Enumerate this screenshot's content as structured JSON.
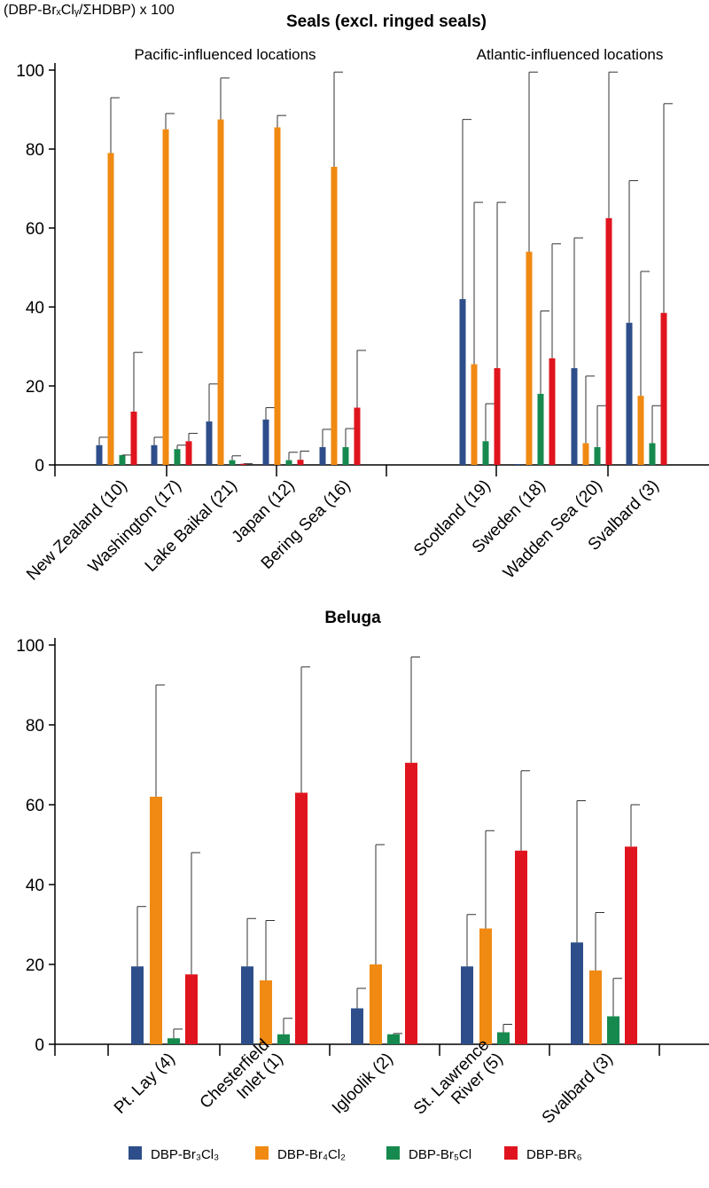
{
  "colors": {
    "DBP-Br3Cl3": "#2d4e8a",
    "DBP-Br4Cl2": "#f08a12",
    "DBP-Br5Cl": "#168a4e",
    "DBP-BR6": "#e0141e",
    "error_bar": "#333333",
    "axis": "#000000"
  },
  "ylabel": "(DBP-BrₓClᵧ/ΣHDBP) x 100",
  "legend": [
    "DBP-Br₃Cl₃",
    "DBP-Br₄Cl₂",
    "DBP-Br₅Cl",
    "DBP-BR₆"
  ],
  "chart_data": [
    {
      "type": "bar",
      "title": "Seals (excl. ringed seals)",
      "group_labels": [
        "Pacific-influenced locations",
        "Atlantic-influenced locations"
      ],
      "ylim": [
        0,
        100
      ],
      "yticks": [
        0,
        20,
        40,
        60,
        80,
        100
      ],
      "categories": [
        "New Zealand (10)",
        "Washington (17)",
        "Lake Baikal (21)",
        "Japan (12)",
        "Bering Sea (16)",
        "Scotland (19)",
        "Sweden (18)",
        "Wadden Sea (20)",
        "Svalbard (3)"
      ],
      "series": [
        {
          "name": "DBP-Br₃Cl₃",
          "values": [
            5,
            5,
            11,
            11.5,
            4.5,
            42,
            0,
            24.5,
            36
          ],
          "errors": [
            7,
            7,
            20.5,
            14.5,
            9,
            87.5,
            null,
            57.5,
            72
          ]
        },
        {
          "name": "DBP-Br₄Cl₂",
          "values": [
            79,
            85,
            87.5,
            85.5,
            75.5,
            25.5,
            54,
            5.5,
            17.5
          ],
          "errors": [
            93,
            89,
            98,
            88.5,
            99.5,
            66.5,
            99.5,
            22.5,
            49
          ]
        },
        {
          "name": "DBP-Br₅Cl",
          "values": [
            2.5,
            4,
            1.2,
            1.2,
            4.5,
            6,
            18,
            4.5,
            5.5
          ],
          "errors": [
            2.5,
            5,
            2.3,
            3.2,
            9.2,
            15.5,
            39,
            15,
            15
          ]
        },
        {
          "name": "DBP-BR₆",
          "values": [
            13.5,
            6,
            0.3,
            1.3,
            14.5,
            24.5,
            27,
            62.5,
            38.5
          ],
          "errors": [
            28.5,
            8,
            0.3,
            3.5,
            29,
            66.5,
            56,
            99.5,
            91.5
          ]
        }
      ]
    },
    {
      "type": "bar",
      "title": "Beluga",
      "ylim": [
        0,
        100
      ],
      "yticks": [
        0,
        20,
        40,
        60,
        80,
        100
      ],
      "categories": [
        "Pt. Lay (4)",
        "Chesterfield Inlet (1)",
        "Igloolik (2)",
        "St. Lawrence River (5)",
        "Svalbard (3)"
      ],
      "series": [
        {
          "name": "DBP-Br₃Cl₃",
          "values": [
            19.5,
            19.5,
            9,
            19.5,
            25.5
          ],
          "errors": [
            34.5,
            31.5,
            14,
            32.5,
            61
          ]
        },
        {
          "name": "DBP-Br₄Cl₂",
          "values": [
            62,
            16,
            20,
            29,
            18.5
          ],
          "errors": [
            90,
            31,
            50,
            53.5,
            33
          ]
        },
        {
          "name": "DBP-Br₅Cl",
          "values": [
            1.5,
            2.5,
            2.5,
            3,
            7
          ],
          "errors": [
            3.8,
            6.5,
            2.7,
            5,
            16.5
          ]
        },
        {
          "name": "DBP-BR₆",
          "values": [
            17.5,
            63,
            70.5,
            48.5,
            49.5
          ],
          "errors": [
            48,
            94.5,
            97,
            68.5,
            60
          ]
        }
      ]
    }
  ]
}
